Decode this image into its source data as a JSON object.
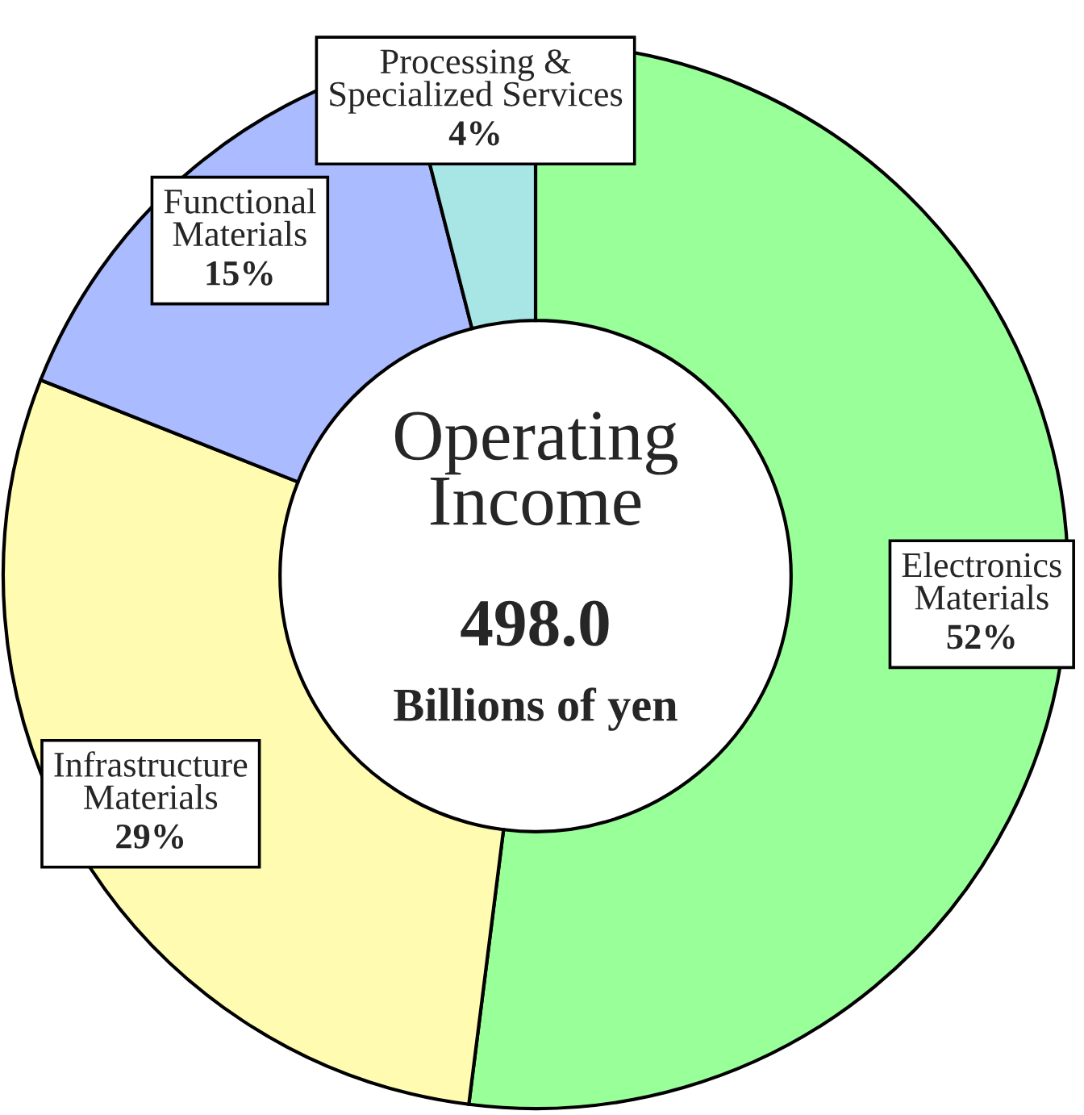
{
  "chart_data": {
    "type": "donut",
    "title": "Operating\nIncome",
    "categories": [
      "Electronics\nMaterials",
      "Infrastructure\nMaterials",
      "Functional\nMaterials",
      "Processing &\nSpecialized Services"
    ],
    "values": [
      52,
      29,
      15,
      4
    ],
    "colors": [
      "#99ff99",
      "#fffbb0",
      "#aabbff",
      "#a8e6e6"
    ],
    "value_labels": [
      "52%",
      "29%",
      "15%",
      "4%"
    ],
    "annotations": [
      "498.0",
      "Billions of yen"
    ]
  }
}
